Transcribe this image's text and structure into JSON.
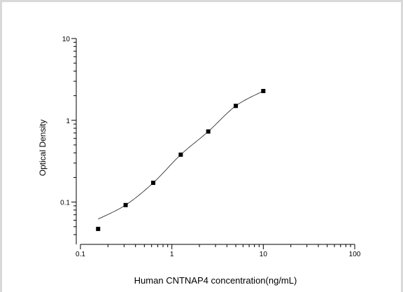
{
  "chart_data": {
    "type": "scatter",
    "title": "",
    "xlabel": "Human CNTNAP4 concentration(ng/mL)",
    "ylabel": "Optical Density",
    "x_scale": "log",
    "y_scale": "log",
    "xlim": [
      0.1,
      100
    ],
    "ylim": [
      0.03,
      10
    ],
    "x_ticks": [
      0.1,
      1,
      10,
      100
    ],
    "x_tick_labels": [
      "0.1",
      "1",
      "10",
      "100"
    ],
    "y_ticks": [
      0.1,
      1,
      10
    ],
    "y_tick_labels": [
      "0.1",
      "1",
      "10"
    ],
    "grid": false,
    "legend": "none",
    "series": [
      {
        "points": [
          {
            "x": 0.156,
            "y": 0.047
          },
          {
            "x": 0.312,
            "y": 0.092
          },
          {
            "x": 0.625,
            "y": 0.172
          },
          {
            "x": 1.25,
            "y": 0.38
          },
          {
            "x": 2.5,
            "y": 0.73
          },
          {
            "x": 5,
            "y": 1.5
          },
          {
            "x": 10,
            "y": 2.28
          }
        ],
        "fit_curve": true
      }
    ]
  }
}
